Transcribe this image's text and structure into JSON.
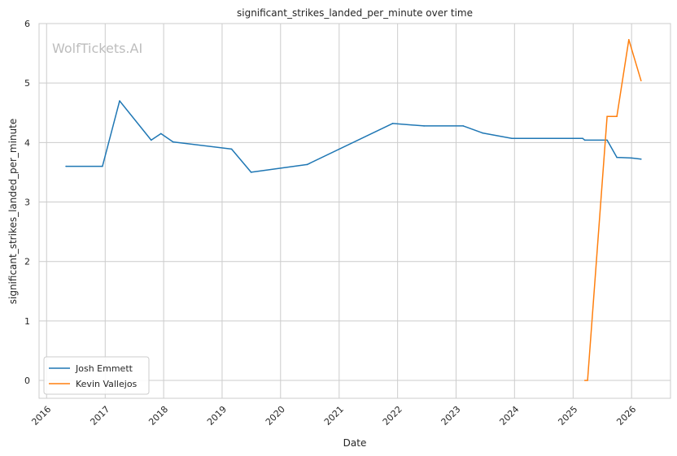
{
  "chart_data": {
    "type": "line",
    "title": "significant_strikes_landed_per_minute over time",
    "xlabel": "Date",
    "ylabel": "significant_strikes_landed_per_minute",
    "watermark": "WolfTickets.AI",
    "ylim": [
      -0.3,
      6
    ],
    "xlim": [
      "2015-11-15",
      "2026-09-01"
    ],
    "x_ticks": [
      "2016",
      "2017",
      "2018",
      "2019",
      "2020",
      "2021",
      "2022",
      "2023",
      "2024",
      "2025",
      "2026"
    ],
    "y_ticks": [
      "0",
      "1",
      "2",
      "3",
      "4",
      "5",
      "6"
    ],
    "grid": true,
    "legend_position": "bottom-left",
    "series": [
      {
        "name": "Josh Emmett",
        "color": "#1f77b4",
        "points": [
          [
            "2016-05-01",
            3.6
          ],
          [
            "2016-12-15",
            3.6
          ],
          [
            "2017-04-01",
            4.7
          ],
          [
            "2017-10-15",
            4.04
          ],
          [
            "2017-12-15",
            4.15
          ],
          [
            "2018-03-01",
            4.01
          ],
          [
            "2019-03-01",
            3.89
          ],
          [
            "2019-07-01",
            3.5
          ],
          [
            "2020-06-15",
            3.63
          ],
          [
            "2021-12-01",
            4.32
          ],
          [
            "2022-06-15",
            4.28
          ],
          [
            "2023-02-15",
            4.28
          ],
          [
            "2023-06-15",
            4.16
          ],
          [
            "2023-12-15",
            4.07
          ],
          [
            "2025-03-01",
            4.07
          ],
          [
            "2025-03-15",
            4.04
          ],
          [
            "2025-08-01",
            4.04
          ],
          [
            "2025-10-01",
            3.75
          ],
          [
            "2026-01-01",
            3.74
          ],
          [
            "2026-03-01",
            3.72
          ]
        ]
      },
      {
        "name": "Kevin Vallejos",
        "color": "#ff7f0e",
        "points": [
          [
            "2025-03-15",
            0.0
          ],
          [
            "2025-04-01",
            0.0
          ],
          [
            "2025-08-01",
            4.44
          ],
          [
            "2025-10-01",
            4.44
          ],
          [
            "2025-12-15",
            5.73
          ],
          [
            "2026-03-01",
            5.04
          ]
        ]
      }
    ]
  }
}
